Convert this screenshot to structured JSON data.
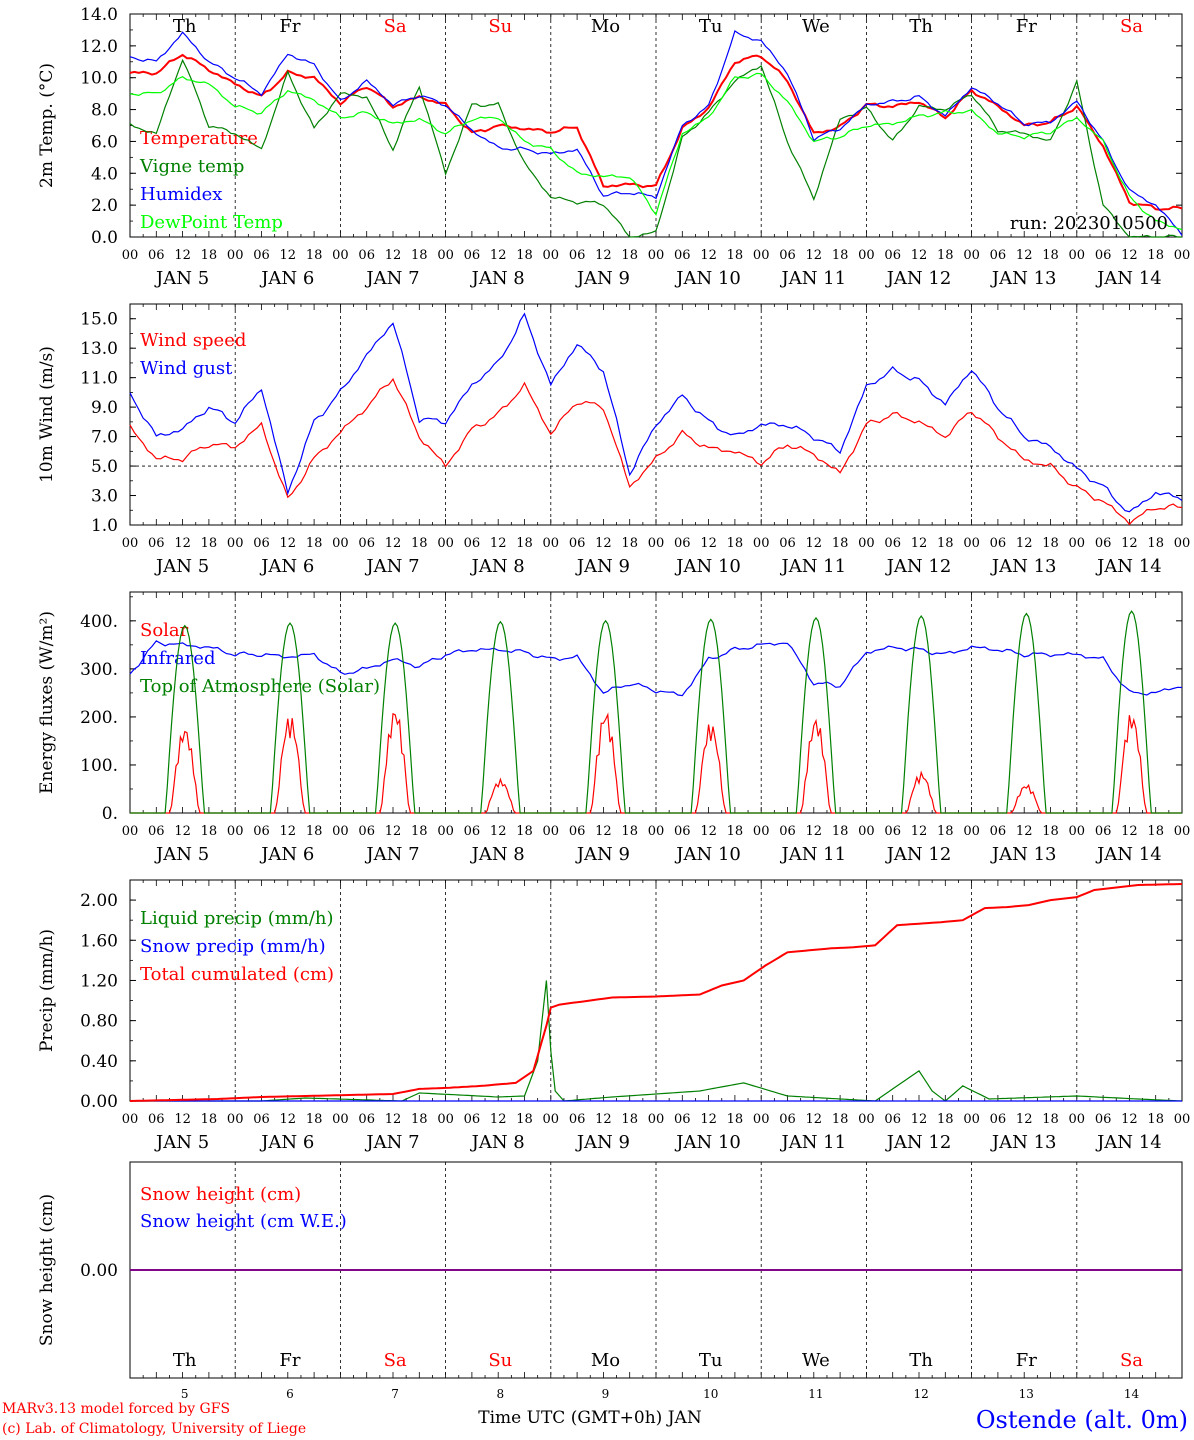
{
  "colors": {
    "red": "#ff0000",
    "green": "#008000",
    "blue": "#0000ff",
    "lightgreen": "#00ff00",
    "purple": "#800080",
    "black": "#000000"
  },
  "days": {
    "weekday_labels": [
      "Th",
      "Fr",
      "Sa",
      "Su",
      "Mo",
      "Tu",
      "We",
      "Th",
      "Fr",
      "Sa"
    ],
    "weekend_flags": [
      false,
      false,
      true,
      true,
      false,
      false,
      false,
      false,
      false,
      true
    ],
    "date_labels": [
      "JAN  5",
      "JAN  6",
      "JAN  7",
      "JAN  8",
      "JAN  9",
      "JAN 10",
      "JAN 11",
      "JAN 12",
      "JAN 13",
      "JAN 14"
    ],
    "day_numbers": [
      "5",
      "6",
      "7",
      "8",
      "9",
      "10",
      "11",
      "12",
      "13",
      "14"
    ],
    "hour_ticks": [
      "00",
      "06",
      "12",
      "18"
    ],
    "final_hour": "00"
  },
  "footer": {
    "model_line": "MARv3.13 model forced by GFS",
    "copyright_line": "(c) Lab. of Climatology, University of Liege",
    "time_axis_label": "Time UTC (GMT+0h) JAN",
    "station": "Ostende (alt. 0m)"
  },
  "chart_data": [
    {
      "type": "line",
      "ylabel": "2m Temp. (°C)",
      "ylim": [
        0,
        14
      ],
      "yticks": [
        "0.0",
        "2.0",
        "4.0",
        "6.0",
        "8.0",
        "10.0",
        "12.0",
        "14.0"
      ],
      "yticks_values": [
        0,
        2,
        4,
        6,
        8,
        10,
        12,
        14
      ],
      "annotation": "run: 2023010500",
      "x_units": "hours since JAN 5 00 UTC",
      "series": [
        {
          "name": "Temperature",
          "color": "red",
          "x": [
            0,
            6,
            12,
            18,
            24,
            30,
            36,
            42,
            48,
            54,
            60,
            66,
            72,
            78,
            84,
            90,
            96,
            102,
            108,
            114,
            120,
            126,
            132,
            138,
            144,
            150,
            156,
            162,
            168,
            174,
            180,
            186,
            192,
            198,
            204,
            210,
            216,
            222,
            228,
            234,
            240
          ],
          "y": [
            10.3,
            10.3,
            11.5,
            10.5,
            9.6,
            8.8,
            10.3,
            10,
            8.4,
            9.5,
            8.2,
            8.8,
            8.3,
            6.5,
            7,
            6.8,
            6.6,
            6.9,
            3.2,
            3.3,
            3.2,
            6.8,
            8.1,
            11,
            11.4,
            9.8,
            6.5,
            6.9,
            8.3,
            8.2,
            8.5,
            7.5,
            9.2,
            8.2,
            7,
            7.2,
            8.2,
            5.7,
            2.2,
            1.8,
            1.8
          ]
        },
        {
          "name": "Vigne temp",
          "color": "green",
          "x": [
            0,
            6,
            12,
            18,
            24,
            30,
            36,
            42,
            48,
            54,
            60,
            66,
            72,
            78,
            84,
            90,
            96,
            102,
            108,
            114,
            120,
            126,
            132,
            138,
            144,
            150,
            156,
            162,
            168,
            174,
            180,
            186,
            192,
            198,
            204,
            210,
            216,
            222,
            228,
            234,
            240
          ],
          "y": [
            7,
            6.5,
            11.2,
            7,
            6.5,
            5.5,
            10.3,
            6.8,
            9,
            8.8,
            5.5,
            9.5,
            4,
            8.3,
            8.3,
            4.6,
            2.5,
            2.2,
            2.1,
            0,
            0.3,
            6.2,
            7.8,
            9.8,
            10.8,
            6,
            2.4,
            7.4,
            8.1,
            6,
            8.2,
            8,
            9,
            6.7,
            6.5,
            6,
            9.7,
            2,
            0,
            0,
            0
          ]
        },
        {
          "name": "Humidex",
          "color": "blue",
          "x": [
            0,
            6,
            12,
            18,
            24,
            30,
            36,
            42,
            48,
            54,
            60,
            66,
            72,
            78,
            84,
            90,
            96,
            102,
            108,
            114,
            120,
            126,
            132,
            138,
            144,
            150,
            156,
            162,
            168,
            174,
            180,
            186,
            192,
            198,
            204,
            210,
            216,
            222,
            228,
            234,
            240
          ],
          "y": [
            11.3,
            11,
            12.8,
            11,
            10,
            9,
            11.5,
            10.8,
            8.5,
            9.8,
            8.3,
            8.9,
            8.3,
            6.7,
            5.6,
            5.5,
            5.2,
            5.5,
            2.6,
            2.8,
            2.5,
            7,
            8.2,
            12.8,
            12.3,
            10.3,
            6.2,
            6.8,
            8.3,
            8.5,
            8.8,
            7.6,
            9.4,
            8.4,
            7.1,
            7.2,
            8.5,
            6,
            2.9,
            2,
            0.2
          ]
        },
        {
          "name": "DewPoint Temp",
          "color": "lightgreen",
          "x": [
            0,
            6,
            12,
            18,
            24,
            30,
            36,
            42,
            48,
            54,
            60,
            66,
            72,
            78,
            84,
            90,
            96,
            102,
            108,
            114,
            120,
            126,
            132,
            138,
            144,
            150,
            156,
            162,
            168,
            174,
            180,
            186,
            192,
            198,
            204,
            210,
            216,
            222,
            228,
            234,
            240
          ],
          "y": [
            9,
            9,
            10,
            9.6,
            8.2,
            7.8,
            9.2,
            8.6,
            7.5,
            7.8,
            7.1,
            7.4,
            6.5,
            7.4,
            7.5,
            6,
            5.5,
            4,
            3.8,
            3.8,
            1.5,
            6.5,
            7.5,
            10,
            10.2,
            8.5,
            6,
            6.3,
            7,
            7.1,
            7.6,
            7.8,
            7.9,
            6.5,
            6.3,
            6.6,
            7.5,
            6,
            2.5,
            1,
            0.5
          ]
        }
      ]
    },
    {
      "type": "line",
      "ylabel": "10m Wind (m/s)",
      "ylim": [
        1,
        16
      ],
      "yticks": [
        "1.0",
        "3.0",
        "5.0",
        "7.0",
        "9.0",
        "11.0",
        "13.0",
        "15.0"
      ],
      "yticks_values": [
        1,
        3,
        5,
        7,
        9,
        11,
        13,
        15
      ],
      "reference_line": 5,
      "x_units": "hours since JAN 5 00 UTC",
      "series": [
        {
          "name": "Wind speed",
          "color": "red",
          "x": [
            0,
            6,
            12,
            18,
            24,
            30,
            36,
            42,
            48,
            54,
            60,
            66,
            72,
            78,
            84,
            90,
            96,
            102,
            108,
            114,
            120,
            126,
            132,
            138,
            144,
            150,
            156,
            162,
            168,
            174,
            180,
            186,
            192,
            198,
            204,
            210,
            216,
            222,
            228,
            234,
            240
          ],
          "y": [
            7.6,
            5.5,
            5.5,
            6.5,
            6.3,
            7.8,
            2.7,
            5.5,
            7.3,
            9,
            11,
            7,
            5,
            7.5,
            8.5,
            10.5,
            7.2,
            9.4,
            9,
            3.6,
            5.5,
            7.2,
            6.2,
            6,
            5.2,
            6.5,
            5.8,
            4.5,
            7.8,
            8.5,
            8,
            7,
            8.8,
            7,
            5.4,
            5,
            3.5,
            2.6,
            1.2,
            2.2,
            2.2
          ]
        },
        {
          "name": "Wind gust",
          "color": "blue",
          "x": [
            0,
            6,
            12,
            18,
            24,
            30,
            36,
            42,
            48,
            54,
            60,
            66,
            72,
            78,
            84,
            90,
            96,
            102,
            108,
            114,
            120,
            126,
            132,
            138,
            144,
            150,
            156,
            162,
            168,
            174,
            180,
            186,
            192,
            198,
            204,
            210,
            216,
            222,
            228,
            234,
            240
          ],
          "y": [
            9.9,
            7,
            7.5,
            9,
            8,
            10.3,
            3.2,
            8,
            10,
            12.5,
            14.8,
            8.2,
            8,
            10.5,
            12,
            15.2,
            10.5,
            13.3,
            11.5,
            4.5,
            7.8,
            9.8,
            8,
            7,
            7.8,
            7.8,
            7,
            6,
            10.4,
            11.5,
            10.8,
            9.2,
            11.6,
            9,
            7,
            6.3,
            4.8,
            3.6,
            1.8,
            3.2,
            2.8
          ]
        }
      ]
    },
    {
      "type": "line",
      "ylabel": "Energy fluxes (W/m²)",
      "ylim": [
        0,
        460
      ],
      "yticks": [
        "0.",
        "100.",
        "200.",
        "300.",
        "400."
      ],
      "yticks_values": [
        0,
        100,
        200,
        300,
        400
      ],
      "x_units": "hours since JAN 5 00 UTC",
      "series": [
        {
          "name": "Solar",
          "color": "red",
          "daily_peaks": [
            180,
            205,
            220,
            70,
            215,
            190,
            200,
            85,
            60,
            210
          ]
        },
        {
          "name": "Infrared",
          "color": "blue",
          "x": [
            0,
            6,
            12,
            18,
            24,
            30,
            36,
            42,
            48,
            54,
            60,
            66,
            72,
            78,
            84,
            90,
            96,
            102,
            108,
            114,
            120,
            126,
            132,
            138,
            144,
            150,
            156,
            162,
            168,
            174,
            180,
            186,
            192,
            198,
            204,
            210,
            216,
            222,
            228,
            234,
            240
          ],
          "y": [
            290,
            355,
            350,
            345,
            330,
            330,
            325,
            330,
            290,
            300,
            320,
            305,
            330,
            340,
            340,
            335,
            320,
            325,
            250,
            270,
            255,
            245,
            320,
            340,
            350,
            355,
            270,
            265,
            335,
            345,
            340,
            330,
            345,
            340,
            330,
            330,
            330,
            320,
            250,
            250,
            265
          ]
        },
        {
          "name": "Top of Atmosphere (Solar)",
          "color": "green",
          "daily_peaks": [
            390,
            395,
            395,
            398,
            400,
            403,
            406,
            410,
            415,
            420
          ]
        }
      ]
    },
    {
      "type": "line",
      "ylabel": "Precip (mm/h)",
      "ylim": [
        0,
        2.2
      ],
      "yticks": [
        "0.00",
        "0.40",
        "0.80",
        "1.20",
        "1.60",
        "2.00"
      ],
      "yticks_values": [
        0,
        0.4,
        0.8,
        1.2,
        1.6,
        2.0
      ],
      "x_units": "hours since JAN 5 00 UTC",
      "series": [
        {
          "name": "Liquid precip (mm/h)",
          "color": "green",
          "x": [
            0,
            30,
            40,
            62,
            66,
            84,
            90,
            93,
            95,
            96,
            97,
            99,
            110,
            130,
            140,
            150,
            170,
            180,
            183,
            186,
            190,
            196,
            216,
            230,
            240
          ],
          "y": [
            0,
            0,
            0.03,
            0,
            0.08,
            0.04,
            0.05,
            0.4,
            1.2,
            0.5,
            0.1,
            0,
            0.04,
            0.1,
            0.18,
            0.05,
            0,
            0.3,
            0.1,
            0,
            0.15,
            0.02,
            0.05,
            0.02,
            0
          ]
        },
        {
          "name": "Snow precip (mm/h)",
          "color": "blue",
          "x": [
            0,
            240
          ],
          "y": [
            0,
            0
          ]
        },
        {
          "name": "Total cumulated (cm)",
          "color": "red",
          "x": [
            0,
            10,
            20,
            30,
            40,
            50,
            60,
            66,
            72,
            80,
            88,
            92,
            95,
            96,
            98,
            105,
            110,
            120,
            125,
            130,
            135,
            140,
            145,
            150,
            160,
            165,
            170,
            175,
            185,
            190,
            195,
            200,
            205,
            210,
            216,
            220,
            230,
            240
          ],
          "y": [
            0,
            0.01,
            0.02,
            0.04,
            0.05,
            0.06,
            0.07,
            0.12,
            0.13,
            0.15,
            0.18,
            0.3,
            0.75,
            0.93,
            0.96,
            1.0,
            1.03,
            1.04,
            1.05,
            1.06,
            1.15,
            1.2,
            1.35,
            1.48,
            1.52,
            1.53,
            1.55,
            1.75,
            1.78,
            1.8,
            1.92,
            1.93,
            1.95,
            2.0,
            2.03,
            2.1,
            2.15,
            2.16
          ]
        }
      ]
    },
    {
      "type": "line",
      "ylabel": "Snow height (cm)",
      "ylim": [
        -1,
        1
      ],
      "yticks": [
        "0.00"
      ],
      "yticks_values": [
        0
      ],
      "x_units": "hours since JAN 5 00 UTC",
      "series": [
        {
          "name": "Snow height (cm)",
          "color": "red",
          "x": [
            0,
            240
          ],
          "y": [
            0,
            0
          ]
        },
        {
          "name": "Snow height (cm W.E.)",
          "color": "blue",
          "x": [
            0,
            240
          ],
          "y": [
            0,
            0
          ]
        }
      ]
    }
  ]
}
